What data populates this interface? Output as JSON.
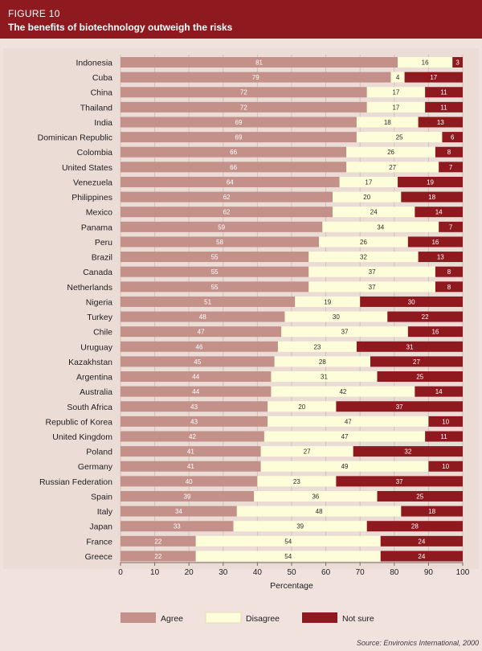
{
  "figure": {
    "label": "FIGURE 10",
    "title": "The benefits of biotechnology outweigh the risks",
    "source": "Source: Environics International, 2000"
  },
  "colors": {
    "agree": "#c4918a",
    "disagree": "#fefdda",
    "not_sure": "#8e1a20"
  },
  "chart_data": {
    "type": "bar",
    "orientation": "horizontal",
    "stacked": true,
    "title": "The benefits of biotechnology outweigh the risks",
    "xlabel": "Percentage",
    "ylabel": "",
    "xlim": [
      0,
      100
    ],
    "xticks": [
      0,
      10,
      20,
      30,
      40,
      50,
      60,
      70,
      80,
      90,
      100
    ],
    "legend_position": "bottom",
    "categories": [
      "Indonesia",
      "Cuba",
      "China",
      "Thailand",
      "India",
      "Dominican Republic",
      "Colombia",
      "United States",
      "Venezuela",
      "Philippines",
      "Mexico",
      "Panama",
      "Peru",
      "Brazil",
      "Canada",
      "Netherlands",
      "Nigeria",
      "Turkey",
      "Chile",
      "Uruguay",
      "Kazakhstan",
      "Argentina",
      "Australia",
      "South Africa",
      "Republic of Korea",
      "United Kingdom",
      "Poland",
      "Germany",
      "Russian Federation",
      "Spain",
      "Italy",
      "Japan",
      "France",
      "Greece"
    ],
    "series": [
      {
        "name": "Agree",
        "values": [
          81,
          79,
          72,
          72,
          69,
          69,
          66,
          66,
          64,
          62,
          62,
          59,
          58,
          55,
          55,
          55,
          51,
          48,
          47,
          46,
          45,
          44,
          44,
          43,
          43,
          42,
          41,
          41,
          40,
          39,
          34,
          33,
          22,
          22
        ]
      },
      {
        "name": "Disagree",
        "values": [
          16,
          4,
          17,
          17,
          18,
          25,
          26,
          27,
          17,
          20,
          24,
          34,
          26,
          32,
          37,
          37,
          19,
          30,
          37,
          23,
          28,
          31,
          42,
          20,
          47,
          47,
          27,
          49,
          23,
          36,
          48,
          39,
          54,
          54
        ]
      },
      {
        "name": "Not sure",
        "values": [
          3,
          17,
          11,
          11,
          13,
          6,
          8,
          7,
          19,
          18,
          14,
          7,
          16,
          13,
          8,
          8,
          30,
          22,
          16,
          31,
          27,
          25,
          14,
          37,
          10,
          11,
          32,
          10,
          37,
          25,
          18,
          28,
          24,
          24
        ]
      }
    ]
  }
}
